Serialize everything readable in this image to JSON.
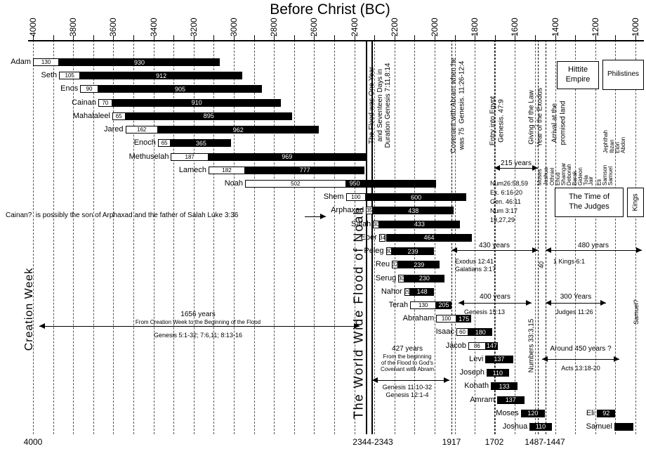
{
  "title": "Before Christ (BC)",
  "axis": {
    "start": 4000,
    "end": 1000,
    "label_step": 200,
    "minor_step": 100,
    "labels": [
      "4000",
      "3800",
      "3600",
      "3400",
      "3200",
      "3000",
      "2800",
      "2600",
      "2400",
      "2200",
      "2000",
      "1800",
      "1600",
      "1400",
      "1200",
      "1000"
    ]
  },
  "bottom_labels": [
    "4000",
    "2344-2343",
    "1917",
    "1702",
    "1487-1447"
  ],
  "chart_data": {
    "type": "bar",
    "subtype": "genealogy-timeline",
    "title": "Before Christ (BC)",
    "x_axis": {
      "unit": "years BC",
      "min": 1000,
      "max": 4000,
      "reversed": true,
      "grid": "dashed every 100 years"
    },
    "bar_encoding": {
      "white_box": "age at birth of named son",
      "black_bar": "total lifespan"
    },
    "people": [
      {
        "name": "Adam",
        "birth": 4000,
        "head": 130,
        "total": 930
      },
      {
        "name": "Seth",
        "birth": 3870,
        "head": 105,
        "total": 912
      },
      {
        "name": "Enos",
        "birth": 3765,
        "head": 90,
        "total": 905
      },
      {
        "name": "Cainan",
        "birth": 3675,
        "head": 70,
        "total": 910
      },
      {
        "name": "Mahalaleel",
        "birth": 3605,
        "head": 65,
        "total": 895
      },
      {
        "name": "Jared",
        "birth": 3540,
        "head": 162,
        "total": 962
      },
      {
        "name": "Enoch",
        "birth": 3378,
        "head": 65,
        "total": 365
      },
      {
        "name": "Methuselah",
        "birth": 3313,
        "head": 187,
        "total": 969
      },
      {
        "name": "Lamech",
        "birth": 3126,
        "head": 182,
        "total": 777
      },
      {
        "name": "Noah",
        "birth": 2944,
        "head": 502,
        "total": 950,
        "align": "left"
      },
      {
        "name": "Shem",
        "birth": 2442,
        "head": 100,
        "total": 600
      },
      {
        "name": "Arphaxad",
        "birth": 2342,
        "head": 35,
        "total": 438
      },
      {
        "name": "Salah",
        "birth": 2307,
        "head": 30,
        "total": 433
      },
      {
        "name": "Eber",
        "birth": 2277,
        "head": 34,
        "total": 464
      },
      {
        "name": "Peleg",
        "birth": 2243,
        "head": 30,
        "total": 239
      },
      {
        "name": "Reu",
        "birth": 2213,
        "head": 32,
        "total": 239
      },
      {
        "name": "Serug",
        "birth": 2181,
        "head": 30,
        "total": 230
      },
      {
        "name": "Nahor",
        "birth": 2151,
        "head": 29,
        "total": 148
      },
      {
        "name": "Terah",
        "birth": 2122,
        "head": 130,
        "total": 205
      },
      {
        "name": "Abraham",
        "birth": 1992,
        "head": 100,
        "total": 175
      },
      {
        "name": "Isaac",
        "birth": 1892,
        "head": 60,
        "total": 180
      },
      {
        "name": "Jacob",
        "birth": 1832,
        "head": 86,
        "total": 147
      },
      {
        "name": "Levi",
        "birth": 1747,
        "head": null,
        "total": 137
      },
      {
        "name": "Joseph",
        "birth": 1741,
        "head": null,
        "total": 110
      },
      {
        "name": "Kohath",
        "birth": 1720,
        "head": null,
        "total": 133
      },
      {
        "name": "Amram",
        "birth": 1690,
        "head": null,
        "total": 137
      },
      {
        "name": "Moses",
        "birth": 1571,
        "head": null,
        "total": 120
      },
      {
        "name": "Joshua",
        "birth": 1527,
        "head": null,
        "total": 110
      },
      {
        "name": "Eli",
        "birth": 1192,
        "head": null,
        "total": 92,
        "row": 26
      },
      {
        "name": "Samuel",
        "birth": 1105,
        "head": null,
        "total": 95,
        "row": 27,
        "total_label": ""
      }
    ],
    "event_lines": [
      {
        "year": 2344,
        "style": "solid"
      },
      {
        "year": 2343,
        "style": "solid"
      },
      {
        "year": 1917,
        "style": "dashed"
      },
      {
        "year": 1702,
        "style": "dashed"
      },
      {
        "year": 1487,
        "style": "dashed"
      },
      {
        "year": 1447,
        "style": "dashed"
      }
    ],
    "spans": [
      {
        "id": "a215",
        "label": "215 years",
        "refs": [
          "Num26:58,59",
          "Ex. 6:16-20",
          "Gen. 46:11",
          "Num 3:17",
          "19,27,29"
        ]
      },
      {
        "id": "a430",
        "label": "430 years",
        "refs": [
          "Exodus 12:41",
          "Galatians 3:17"
        ]
      },
      {
        "id": "a480",
        "label": "480 years",
        "refs": [
          "1 Kings 6:1"
        ]
      },
      {
        "id": "a400",
        "label": "400 years",
        "refs": [
          "Genesis 15:13"
        ]
      },
      {
        "id": "a300",
        "label": "300 Years",
        "refs": [
          "Judges 11:26"
        ]
      },
      {
        "id": "a1656",
        "label": "1656 years",
        "sub": [
          "From Creation Week to the Beginning of the Flood"
        ],
        "refs": [
          "Genesis 5:1-32; 7:6,11; 8:13-16"
        ]
      },
      {
        "id": "a427",
        "label": "427 years",
        "sub": [
          "From the beginning",
          "of the Flood to God's",
          "Covenant with Abram"
        ],
        "refs": [
          "Genesis 11:10-32",
          "Genesis 12:1-4"
        ]
      },
      {
        "id": "a450",
        "label": "Around 450 years ?",
        "refs": [
          "Acts 13:18-20"
        ]
      }
    ]
  },
  "vertical_notes": [
    {
      "id": "flood-duration",
      "lines": [
        "The Flood was One Year",
        "and Seventeen Days in",
        "Duration Genesis 7:11,8:14"
      ]
    },
    {
      "id": "covenant",
      "lines": [
        "Covenant with Abram when he",
        "was 75  Genesis. 11:26-12:4"
      ]
    },
    {
      "id": "entry-egypt",
      "lines": [
        "Entry into Egypt",
        "Genesis. 47:9"
      ]
    },
    {
      "id": "law",
      "lines": [
        "Giving of the Law",
        "Year of the Exodus"
      ]
    },
    {
      "id": "arrival",
      "lines": [
        "Arrival at the",
        "promised land"
      ]
    },
    {
      "id": "numbers",
      "lines": [
        "Numbers 33:3,15"
      ]
    },
    {
      "id": "samuel-q",
      "lines": [
        "Samuel?"
      ]
    },
    {
      "id": "forty",
      "lines": [
        "40"
      ]
    },
    {
      "id": "flood-big",
      "lines": [
        "The World Wide Flood of Noah"
      ]
    },
    {
      "id": "creation-week",
      "lines": [
        "Creation Week"
      ]
    }
  ],
  "judges": {
    "sequence": [
      "Moses",
      "Joshua",
      "Othniel",
      "Ehud",
      "Shamgar",
      "Deborah",
      "Barak",
      "Gideon",
      "Tola",
      "Jair",
      "Eli",
      "Samson",
      "Samuel"
    ],
    "later": [
      "Jephthah",
      "Ibzan",
      "Elon",
      "Abdon"
    ]
  },
  "boxes": [
    {
      "id": "hittite",
      "lines": [
        "Hittite",
        "Empire"
      ]
    },
    {
      "id": "philistines",
      "lines": [
        "Philistines"
      ]
    },
    {
      "id": "judges-box",
      "lines": [
        "The Time of",
        "The Judges"
      ]
    },
    {
      "id": "kings",
      "lines": [
        "Kings"
      ],
      "vertical": true
    }
  ],
  "cainan_note": "Cainan?  is possibly the son of Arphaxad and the father of Salah Luke 3:36"
}
